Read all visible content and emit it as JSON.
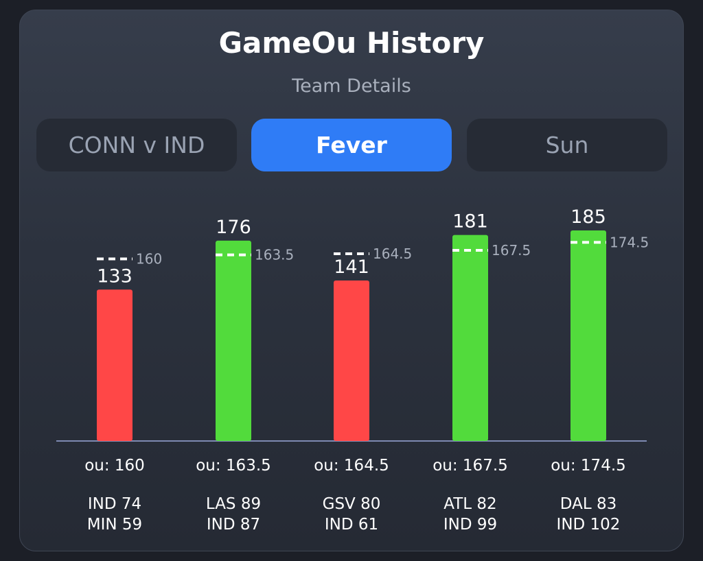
{
  "header": {
    "title": "GameOu History",
    "subtitle": "Team Details"
  },
  "tabs": [
    {
      "label": "CONN v IND",
      "active": false
    },
    {
      "label": "Fever",
      "active": true
    },
    {
      "label": "Sun",
      "active": false
    }
  ],
  "colors": {
    "over": "#52db3c",
    "under": "#ff4747",
    "accent": "#2f7cf6"
  },
  "chart_data": {
    "type": "bar",
    "categories": [
      "IND 74 MIN 59",
      "LAS 89 IND 87",
      "GSV 80 IND 61",
      "ATL 82 IND 99",
      "DAL 83 IND 102"
    ],
    "values": [
      133,
      176,
      141,
      181,
      185
    ],
    "ou_lines": [
      160,
      163.5,
      164.5,
      167.5,
      174.5
    ],
    "value_labels": [
      "133",
      "176",
      "141",
      "181",
      "185"
    ],
    "ou_labels": [
      "160",
      "163.5",
      "164.5",
      "167.5",
      "174.5"
    ],
    "ou_tick_labels": [
      "ou: 160",
      "ou: 163.5",
      "ou: 164.5",
      "ou: 167.5",
      "ou: 174.5"
    ],
    "scores": [
      [
        "IND 74",
        "MIN 59"
      ],
      [
        "LAS 89",
        "IND 87"
      ],
      [
        "GSV 80",
        "IND 61"
      ],
      [
        "ATL 82",
        "IND 99"
      ],
      [
        "DAL 83",
        "IND 102"
      ]
    ],
    "ylim": [
      0,
      185
    ],
    "grid": false,
    "legend": "none"
  }
}
